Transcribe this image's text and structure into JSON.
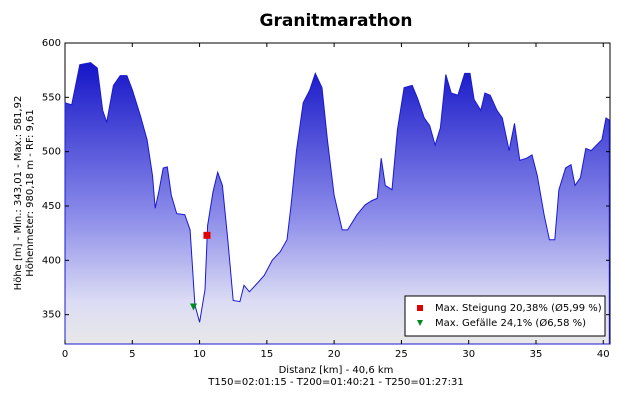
{
  "chart_data": {
    "type": "area",
    "title": "Granitmarathon",
    "xlabel": "Distanz [km] - 40,6 km",
    "subtitle": "T150=02:01:15 - T200=01:40:21 - T250=01:27:31",
    "ylabel": [
      "Höhe [m] - Min.: 343,01 - Max.: 581,92",
      "Höhenmeter: 980,18 m - RF: 9,61"
    ],
    "x": [
      0,
      0.5,
      1.1,
      1.9,
      2.4,
      2.8,
      3.1,
      3.6,
      4.1,
      4.6,
      5.0,
      5.6,
      6.1,
      6.5,
      6.7,
      7.0,
      7.3,
      7.6,
      7.9,
      8.3,
      8.9,
      9.3,
      9.65,
      10.0,
      10.4,
      10.6,
      11.0,
      11.35,
      11.7,
      12.1,
      12.5,
      13.0,
      13.3,
      13.7,
      14.3,
      14.8,
      15.4,
      16.0,
      16.5,
      16.8,
      17.2,
      17.7,
      18.2,
      18.6,
      19.1,
      19.5,
      20.0,
      20.6,
      21.0,
      21.7,
      22.3,
      22.8,
      23.2,
      23.5,
      23.8,
      24.3,
      24.7,
      25.2,
      25.8,
      26.2,
      26.7,
      27.1,
      27.5,
      27.9,
      28.3,
      28.7,
      29.2,
      29.7,
      30.1,
      30.4,
      30.9,
      31.2,
      31.6,
      32.1,
      32.5,
      33.0,
      33.4,
      33.8,
      34.3,
      34.7,
      35.1,
      35.6,
      36.0,
      36.4,
      36.7,
      37.2,
      37.6,
      37.9,
      38.3,
      38.7,
      39.1,
      39.5,
      39.9,
      40.2,
      40.45
    ],
    "values": [
      545,
      543,
      580,
      582,
      577,
      538,
      527,
      561,
      570,
      570,
      557,
      533,
      511,
      478,
      448,
      465,
      485,
      486,
      460,
      443,
      442,
      428,
      359,
      343,
      373,
      432,
      463,
      481,
      469,
      419,
      363,
      362,
      377,
      371,
      379,
      386,
      400,
      408,
      419,
      451,
      501,
      545,
      557,
      572,
      559,
      511,
      460,
      428,
      428,
      442,
      451,
      455,
      457,
      494,
      469,
      465,
      520,
      559,
      561,
      549,
      531,
      524,
      506,
      522,
      571,
      554,
      552,
      572,
      572,
      548,
      538,
      554,
      552,
      538,
      531,
      501,
      526,
      492,
      494,
      497,
      478,
      442,
      419,
      419,
      465,
      485,
      488,
      469,
      476,
      503,
      501,
      506,
      511,
      531,
      529
    ],
    "color": "#1a1ad0",
    "markers": [
      {
        "name": "Max. Steigung 20,38% (Ø5,99 %)",
        "color": "#e00000",
        "shape": "square",
        "x": 10.55,
        "y": 423
      },
      {
        "name": "Max. Gefälle 24,1% (Ø6,58 %)",
        "color": "#008a20",
        "shape": "triangle",
        "x": 9.55,
        "y": 357
      }
    ],
    "xlim": [
      0,
      40.5
    ],
    "ylim": [
      323,
      600
    ],
    "xticks": [
      0,
      5,
      10,
      15,
      20,
      25,
      30,
      35,
      40
    ],
    "yticks": [
      350,
      400,
      450,
      500,
      550,
      600
    ],
    "grid": false,
    "legend": "lower right"
  }
}
